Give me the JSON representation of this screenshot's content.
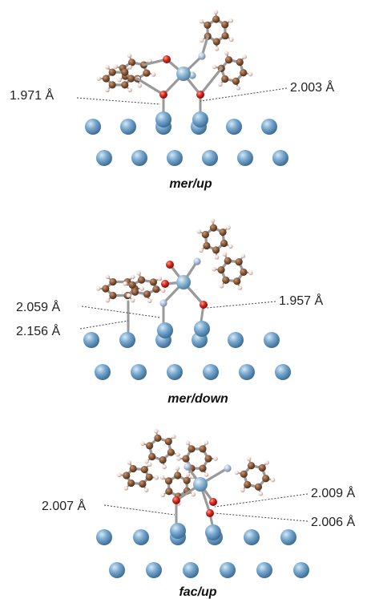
{
  "colors": {
    "carbon": "#8a5a3a",
    "hydrogen": "#f2dcd6",
    "oxygen": "#d6281e",
    "nitrogen": "#b3c6de",
    "metal": "#8fb3cc",
    "substrate": "#6d9fc4",
    "bond": "#9a9a9a",
    "leader": "#444444"
  },
  "panels": [
    {
      "caption": "mer/up",
      "distances": [
        "1.971 Å",
        "2.003 Å"
      ]
    },
    {
      "caption": "mer/down",
      "distances": [
        "2.059 Å",
        "2.156 Å",
        "1.957 Å"
      ]
    },
    {
      "caption": "fac/up",
      "distances": [
        "2.007 Å",
        "2.009 Å",
        "2.006 Å"
      ]
    }
  ]
}
